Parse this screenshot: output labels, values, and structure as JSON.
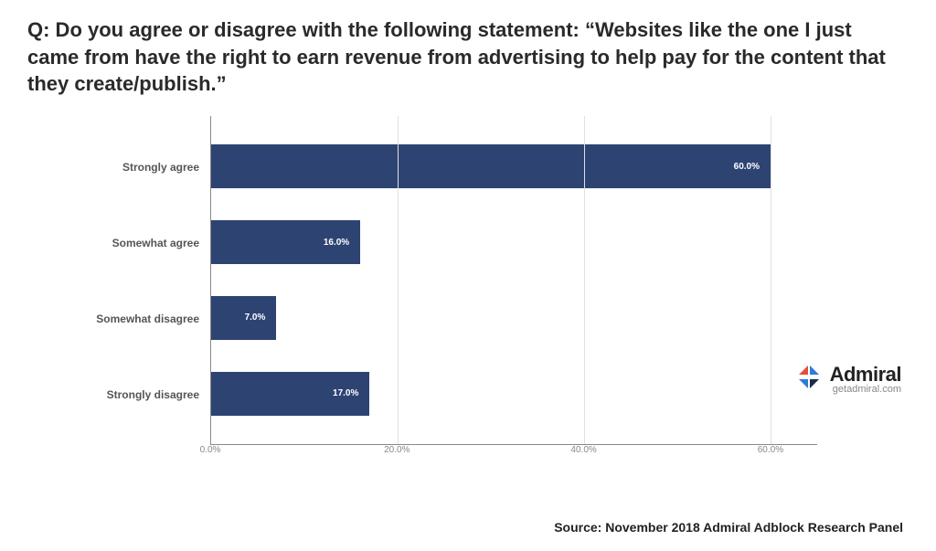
{
  "question": {
    "text": "Q: Do you agree or disagree with the following statement: “Websites like the one I just came from have the right to earn revenue from advertising to help pay for the content that they create/publish.”",
    "fontsize": 22,
    "color": "#2a2a2a"
  },
  "chart": {
    "type": "bar-horizontal",
    "categories": [
      "Strongly agree",
      "Somewhat agree",
      "Somewhat disagree",
      "Strongly disagree"
    ],
    "values": [
      60.0,
      16.0,
      7.0,
      17.0
    ],
    "value_labels": [
      "60.0%",
      "16.0%",
      "7.0%",
      "17.0%"
    ],
    "bar_color": "#2d4372",
    "xlim": [
      0,
      65
    ],
    "xtick_positions": [
      0,
      20,
      40,
      60
    ],
    "xtick_labels": [
      "0.0%",
      "20.0%",
      "40.0%",
      "60.0%"
    ],
    "grid_color": "#e0e0e0",
    "axis_color": "#888888",
    "background_color": "#ffffff",
    "category_fontsize": 12,
    "value_label_fontsize": 10,
    "value_label_color": "#ffffff",
    "tick_fontsize": 10,
    "tick_color": "#888888"
  },
  "branding": {
    "name": "Admiral",
    "url": "getadmiral.com",
    "icon_colors": {
      "blue": "#2f7bd9",
      "red": "#e94b3c",
      "dark": "#1f2a44"
    }
  },
  "source": "Source: November 2018 Admiral Adblock Research Panel"
}
